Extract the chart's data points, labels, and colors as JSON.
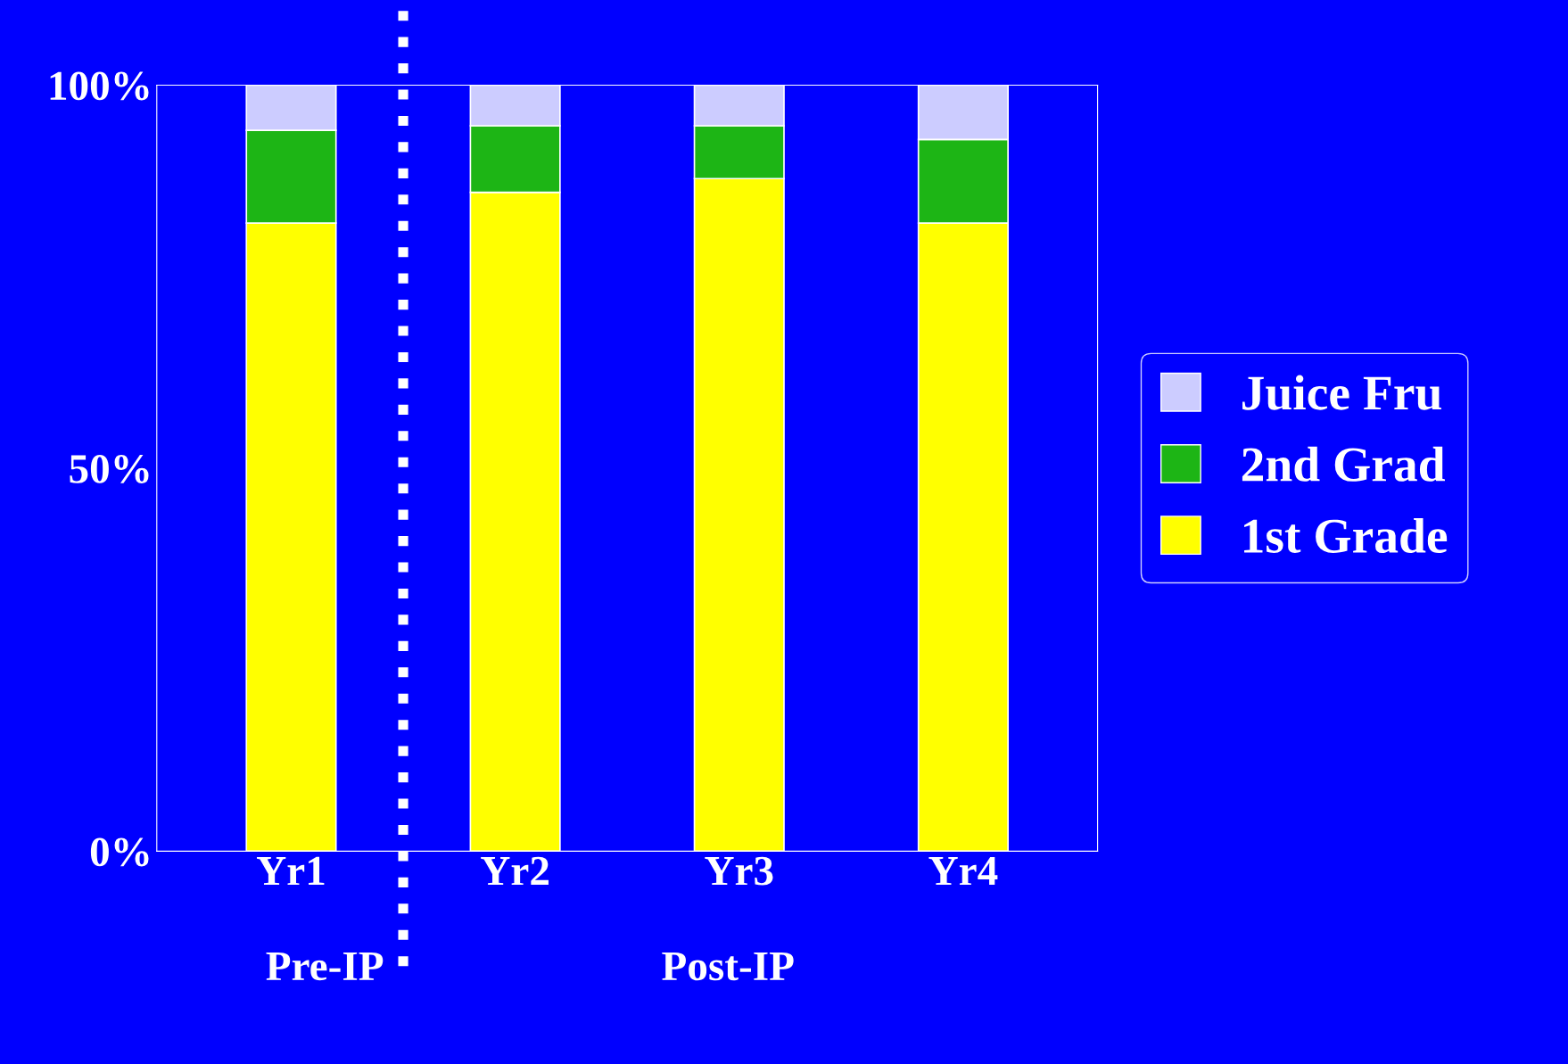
{
  "chart_data": {
    "type": "bar",
    "stacked": true,
    "categories": [
      "Yr1",
      "Yr2",
      "Yr3",
      "Yr4"
    ],
    "series": [
      {
        "name": "1st Grade",
        "color": "#ffff00",
        "values": [
          82.0,
          86.0,
          87.8,
          82.0
        ]
      },
      {
        "name": "2nd Grad",
        "color": "#1db515",
        "values": [
          12.1,
          8.7,
          6.9,
          10.9
        ]
      },
      {
        "name": "Juice Fru",
        "color": "#ccccff",
        "values": [
          5.9,
          5.3,
          5.3,
          7.1
        ]
      }
    ],
    "ylim": [
      0,
      100
    ],
    "yticks": [
      {
        "value": 0,
        "label": "0%"
      },
      {
        "value": 50,
        "label": "50%"
      },
      {
        "value": 100,
        "label": "100%"
      }
    ],
    "grid": false,
    "legend": "right",
    "annotations": [
      "Pre-IP",
      "Post-IP"
    ]
  }
}
